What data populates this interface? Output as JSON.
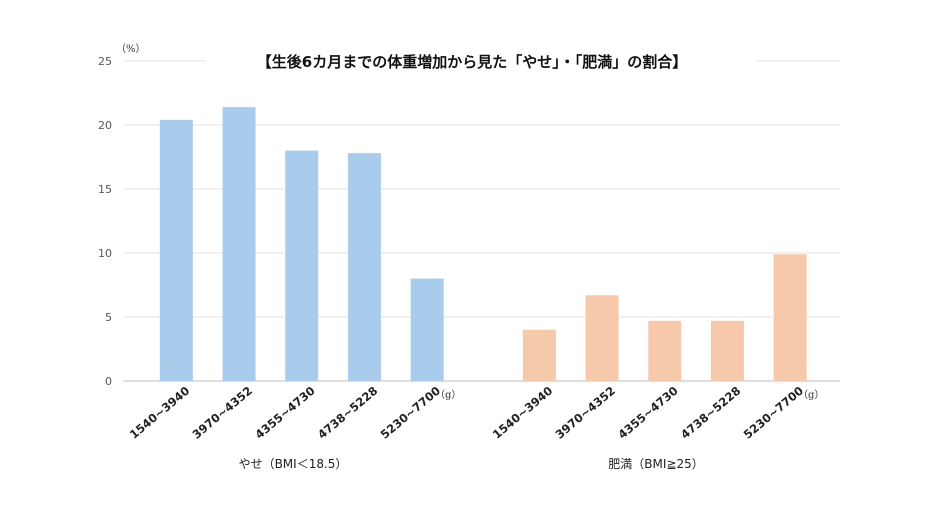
{
  "chart_data": {
    "type": "bar",
    "title": "【生後6カ月までの体重増加から見た「やせ」・「肥満」の割合】",
    "y_unit": "（%）",
    "x_unit": "（g）",
    "ylim": [
      0,
      25
    ],
    "yticks": [
      0,
      5,
      10,
      15,
      20,
      25
    ],
    "grid": true,
    "colors": {
      "yase": "#a9cbec",
      "himan": "#f6c9ab"
    },
    "groups": [
      {
        "name": "やせ（BMI＜18.5）",
        "categories": [
          "1540~3940",
          "3970~4352",
          "4355~4730",
          "4738~5228",
          "5230~7700"
        ],
        "values": [
          20.4,
          21.4,
          18.0,
          17.8,
          8.0
        ]
      },
      {
        "name": "肥満（BMI≧25）",
        "categories": [
          "1540~3940",
          "3970~4352",
          "4355~4730",
          "4738~5228",
          "5230~7700"
        ],
        "values": [
          4.0,
          6.7,
          4.7,
          4.7,
          9.9
        ]
      }
    ]
  }
}
